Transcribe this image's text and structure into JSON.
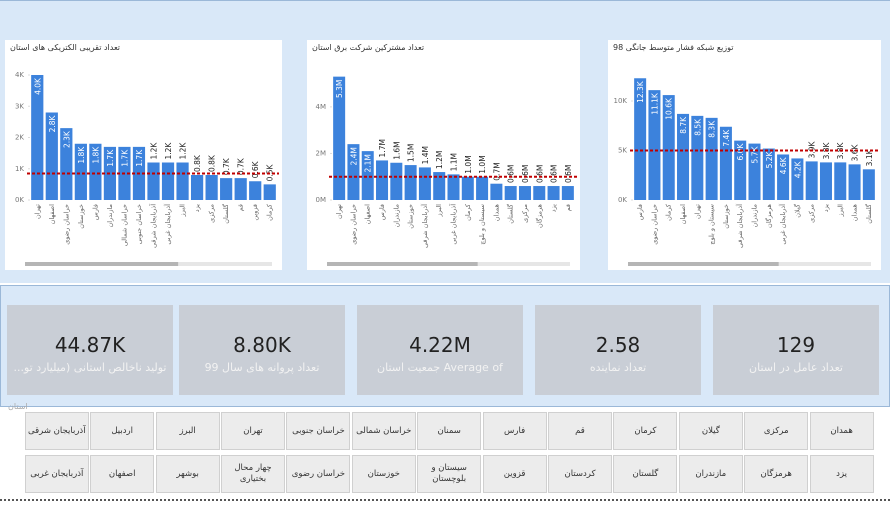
{
  "chart_data": [
    {
      "type": "bar",
      "title": "تعداد تقریبی الکتریکی های استان",
      "color": "#3c82dc",
      "categories": [
        "تهران",
        "اصفهان",
        "خراسان رضوی",
        "خوزستان",
        "فارس",
        "مازندران",
        "خراسان شمالی",
        "خراسان جنوبی",
        "آذربایجان شرقی",
        "آذربایجان غربی",
        "البرز",
        "یزد",
        "مرکزی",
        "گلستان",
        "قم",
        "قزوین",
        "کرمان"
      ],
      "values": [
        4000,
        2800,
        2300,
        1800,
        1800,
        1700,
        1700,
        1700,
        1200,
        1200,
        1200,
        800,
        800,
        700,
        700,
        600,
        500
      ],
      "value_labels": [
        "4.0K",
        "2.8K",
        "2.3K",
        "1.8K",
        "1.8K",
        "1.7K",
        "1.7K",
        "1.7K",
        "1.2K",
        "1.2K",
        "1.2K",
        "0.8K",
        "0.8K",
        "0.7K",
        "0.7K",
        "0.6K",
        "0.5K"
      ],
      "average_line": 850,
      "ylim": [
        0,
        4320
      ],
      "yticks": [
        {
          "value": 0,
          "label": "0K"
        },
        {
          "value": 1000,
          "label": "1K"
        },
        {
          "value": 2000,
          "label": "2K"
        },
        {
          "value": 3000,
          "label": "3K"
        },
        {
          "value": 4000,
          "label": "4K"
        }
      ]
    },
    {
      "type": "bar",
      "title": "تعداد مشترکین شرکت برق استان",
      "color": "#3c82dc",
      "categories": [
        "تهران",
        "خراسان رضوی",
        "اصفهان",
        "فارس",
        "مازندران",
        "خوزستان",
        "آذربایجان شرقی",
        "البرز",
        "آذربایجان غربی",
        "کرمان",
        "سیستان و بلوچ",
        "همدان",
        "گلستان",
        "مرکزی",
        "هرمزگان",
        "یزد",
        "قم"
      ],
      "values": [
        5300000,
        2400000,
        2100000,
        1700000,
        1600000,
        1500000,
        1400000,
        1200000,
        1100000,
        1000000,
        1000000,
        700000,
        600000,
        600000,
        600000,
        600000,
        600000
      ],
      "value_labels": [
        "5.3M",
        "2.4M",
        "2.1M",
        "1.7M",
        "1.6M",
        "1.5M",
        "1.4M",
        "1.2M",
        "1.1M",
        "1.0M",
        "1.0M",
        "0.7M",
        "0.6M",
        "0.6M",
        "0.6M",
        "0.6M",
        "0.6M"
      ],
      "average_line": 1000000,
      "ylim": [
        0,
        5800000
      ],
      "yticks": [
        {
          "value": 0,
          "label": "0M"
        },
        {
          "value": 2000000,
          "label": "2M"
        },
        {
          "value": 4000000,
          "label": "4M"
        }
      ]
    },
    {
      "type": "bar",
      "title": "توزیع شبکه فشار متوسط جانگی 98",
      "color": "#3c82dc",
      "categories": [
        "فارس",
        "خراسان رضوی",
        "کرمان",
        "اصفهان",
        "تهران",
        "سیستان و بلوچ",
        "خوزستان",
        "آذربایجان شرقی",
        "مازندران",
        "هرمزگان",
        "آذربایجان غربی",
        "گیلان",
        "مرکزی",
        "یزد",
        "البرز",
        "همدان",
        "گلستان"
      ],
      "values": [
        12300,
        11100,
        10600,
        8700,
        8500,
        8300,
        7400,
        6000,
        5700,
        5200,
        4600,
        4200,
        3900,
        3800,
        3800,
        3600,
        3100
      ],
      "value_labels": [
        "12.3K",
        "11.1K",
        "10.6K",
        "8.7K",
        "8.5K",
        "8.3K",
        "7.4K",
        "6.0K",
        "5.7K",
        "5.2K",
        "4.6K",
        "4.2K",
        "3.9K",
        "3.8K",
        "3.8K",
        "3.6K",
        "3.1K"
      ],
      "average_line": 5000,
      "ylim": [
        0,
        13640
      ],
      "yticks": [
        {
          "value": 0,
          "label": "0K"
        },
        {
          "value": 5000,
          "label": "5K"
        },
        {
          "value": 10000,
          "label": "10K"
        }
      ]
    }
  ],
  "cards": [
    {
      "value": "44.87K",
      "label": "تولید ناخالص استانی (میلیارد تو..."
    },
    {
      "value": "8.80K",
      "label": "تعداد پروانه های سال 99"
    },
    {
      "value": "4.22M",
      "label": "Average of جمعیت استان"
    },
    {
      "value": "2.58",
      "label": "تعداد نماینده"
    },
    {
      "value": "129",
      "label": "تعداد عامل در استان"
    }
  ],
  "slicer": {
    "title": "استان",
    "rows": [
      [
        "همدان",
        "مرکزی",
        "گیلان",
        "کرمان",
        "قم",
        "فارس",
        "سمنان",
        "خراسان شمالی",
        "خراسان جنوبی",
        "تهران",
        "البرز",
        "اردبیل",
        "آذربایجان شرقی"
      ],
      [
        "یزد",
        "هرمزگان",
        "مازندران",
        "گلستان",
        "کردستان",
        "قزوین",
        "سیستان و بلوچستان",
        "خوزستان",
        "خراسان رضوی",
        "چهار محال بختیاری",
        "بوشهر",
        "اصفهان",
        "آذربایجان غربی"
      ]
    ]
  }
}
